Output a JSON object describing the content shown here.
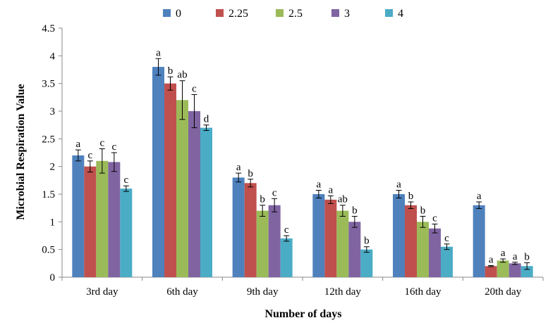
{
  "chart_data": {
    "type": "bar",
    "title": "",
    "xlabel": "Number of days",
    "ylabel": "Microbial Respiration Value",
    "ylim": [
      0,
      4.5
    ],
    "yticks": [
      "0",
      "0.5",
      "1",
      "1.5",
      "2",
      "2.5",
      "3",
      "3.5",
      "4",
      "4.5"
    ],
    "ytick_values": [
      0,
      0.5,
      1,
      1.5,
      2,
      2.5,
      3,
      3.5,
      4,
      4.5
    ],
    "categories": [
      "3rd day",
      "6th day",
      "9th day",
      "12th day",
      "16th day",
      "20th day"
    ],
    "legend_position": "top",
    "grid": false,
    "series": [
      {
        "name": "0",
        "color": "#4F81BD",
        "values": [
          2.2,
          3.8,
          1.8,
          1.5,
          1.5,
          1.3
        ],
        "errors": [
          0.1,
          0.15,
          0.08,
          0.07,
          0.07,
          0.06
        ],
        "labels": [
          "a",
          "a",
          "a",
          "a",
          "a",
          "a"
        ]
      },
      {
        "name": "2.25",
        "color": "#C0504D",
        "values": [
          2.0,
          3.5,
          1.7,
          1.4,
          1.3,
          0.2
        ],
        "errors": [
          0.1,
          0.12,
          0.07,
          0.07,
          0.06,
          0.01
        ],
        "labels": [
          "c",
          "b",
          "b",
          "a",
          "b",
          "a"
        ]
      },
      {
        "name": "2.5",
        "color": "#9BBB59",
        "values": [
          2.1,
          3.2,
          1.2,
          1.2,
          1.0,
          0.3
        ],
        "errors": [
          0.22,
          0.35,
          0.1,
          0.1,
          0.1,
          0.03
        ],
        "labels": [
          "c",
          "ab",
          "b",
          "ab",
          "b",
          "a"
        ]
      },
      {
        "name": "3",
        "color": "#8064A2",
        "values": [
          2.08,
          3.0,
          1.3,
          1.0,
          0.88,
          0.25
        ],
        "errors": [
          0.17,
          0.3,
          0.12,
          0.1,
          0.08,
          0.02
        ],
        "labels": [
          "c",
          "c",
          "c",
          "b",
          "c",
          "a"
        ]
      },
      {
        "name": "4",
        "color": "#4BACC6",
        "values": [
          1.6,
          2.7,
          0.7,
          0.5,
          0.55,
          0.2
        ],
        "errors": [
          0.05,
          0.05,
          0.05,
          0.05,
          0.05,
          0.06
        ],
        "labels": [
          "c",
          "d",
          "c",
          "b",
          "c",
          "b"
        ]
      }
    ]
  }
}
